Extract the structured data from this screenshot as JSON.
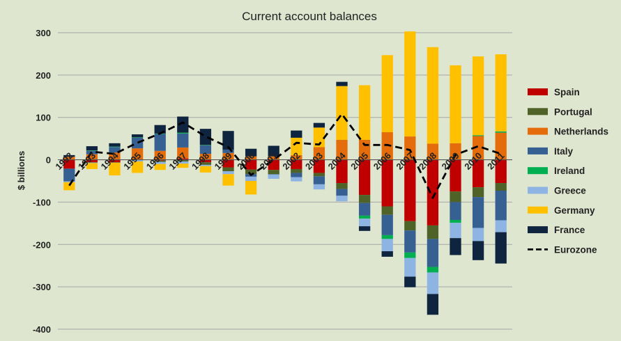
{
  "chart_data": {
    "type": "bar",
    "stacked": true,
    "title": "Current account balances",
    "ylabel": "$ billions",
    "xlabel": "",
    "ylim": [
      -400,
      300
    ],
    "yticks": [
      -400,
      -300,
      -200,
      -100,
      0,
      100,
      200,
      300
    ],
    "grid": "horizontal",
    "legend_position": "right",
    "categories": [
      "1992",
      "1993",
      "1994",
      "1995",
      "1996",
      "1997",
      "1998",
      "1999",
      "2000",
      "2001",
      "2002",
      "2003",
      "2004",
      "2005",
      "2006",
      "2007",
      "2008",
      "2009",
      "2010",
      "2011"
    ],
    "series": [
      {
        "name": "Spain",
        "color": "#c00000",
        "values": [
          -21,
          -6,
          -6,
          0,
          -2,
          3,
          -6,
          -18,
          -23,
          -24,
          -22,
          -31,
          -55,
          -83,
          -110,
          -145,
          -155,
          -75,
          -65,
          -55
        ]
      },
      {
        "name": "Portugal",
        "color": "#4f6228",
        "values": [
          0,
          -1,
          -1,
          -1,
          -3,
          -4,
          -6,
          -9,
          -11,
          -10,
          -9,
          -8,
          -14,
          -19,
          -20,
          -22,
          -32,
          -25,
          -23,
          -18
        ]
      },
      {
        "name": "Netherlands",
        "color": "#e46c0a",
        "values": [
          7,
          13,
          17,
          27,
          21,
          26,
          14,
          16,
          8,
          8,
          11,
          30,
          47,
          47,
          65,
          55,
          38,
          39,
          56,
          64
        ]
      },
      {
        "name": "Italy",
        "color": "#376092",
        "values": [
          -30,
          8,
          13,
          25,
          40,
          33,
          20,
          8,
          -6,
          -1,
          -10,
          -19,
          -16,
          -30,
          -48,
          -52,
          -66,
          -42,
          -73,
          -70
        ]
      },
      {
        "name": "Ireland",
        "color": "#00b050",
        "values": [
          0,
          1,
          1,
          1,
          1,
          2,
          1,
          0,
          0,
          0,
          0,
          0,
          0,
          -7,
          -9,
          -13,
          -13,
          -7,
          2,
          3
        ]
      },
      {
        "name": "Greece",
        "color": "#8db4e2",
        "values": [
          -2,
          -1,
          0,
          -3,
          -5,
          -5,
          -3,
          -7,
          -10,
          -10,
          -10,
          -12,
          -13,
          -18,
          -29,
          -44,
          -51,
          -36,
          -31,
          -28
        ]
      },
      {
        "name": "Germany",
        "color": "#ffc000",
        "values": [
          -19,
          -14,
          -30,
          -27,
          -14,
          -10,
          -15,
          -27,
          -32,
          0,
          41,
          46,
          127,
          129,
          182,
          248,
          228,
          184,
          186,
          182
        ]
      },
      {
        "name": "France",
        "color": "#0f243e",
        "values": [
          4,
          10,
          8,
          7,
          20,
          38,
          38,
          44,
          18,
          25,
          17,
          11,
          10,
          -11,
          -13,
          -25,
          -49,
          -40,
          -45,
          -74
        ]
      }
    ],
    "overlay": {
      "name": "Eurozone",
      "type": "line",
      "style": "dashed",
      "color": "#000000",
      "values": [
        -61,
        19,
        14,
        40,
        62,
        88,
        55,
        30,
        -36,
        0,
        40,
        36,
        108,
        35,
        35,
        23,
        -90,
        12,
        32,
        14
      ]
    }
  }
}
